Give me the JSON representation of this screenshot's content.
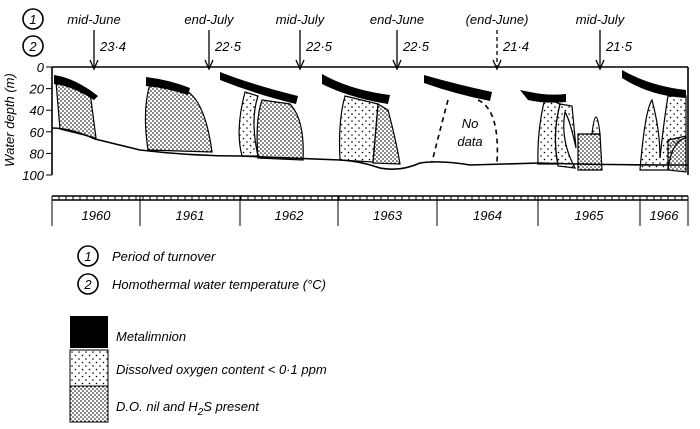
{
  "row_keys": [
    "1",
    "2"
  ],
  "events": [
    {
      "period": "mid-June",
      "temperature": "23·4"
    },
    {
      "period": "end-July",
      "temperature": "22·5"
    },
    {
      "period": "mid-July",
      "temperature": "22·5"
    },
    {
      "period": "end-June",
      "temperature": "22·5"
    },
    {
      "period": "(end-June)",
      "temperature": "21·4"
    },
    {
      "period": "mid-July",
      "temperature": "21·5"
    }
  ],
  "axis": {
    "label": "Water depth (m)",
    "ticks": [
      "0",
      "20",
      "40",
      "60",
      "80",
      "100"
    ]
  },
  "years": [
    "1960",
    "1961",
    "1962",
    "1963",
    "1964",
    "1965",
    "1966"
  ],
  "no_data": [
    "No",
    "data"
  ],
  "key": [
    {
      "number": "1",
      "label": "Period of turnover"
    },
    {
      "number": "2",
      "label": "Homothermal water temperature (°C)"
    }
  ],
  "legend": {
    "metalimnion": "Metalimnion",
    "low_oxygen": "Dissolved oxygen content < 0·1 ppm",
    "h2s": {
      "before": "D.O. nil and H",
      "sub": "2",
      "after": "S present"
    }
  }
}
